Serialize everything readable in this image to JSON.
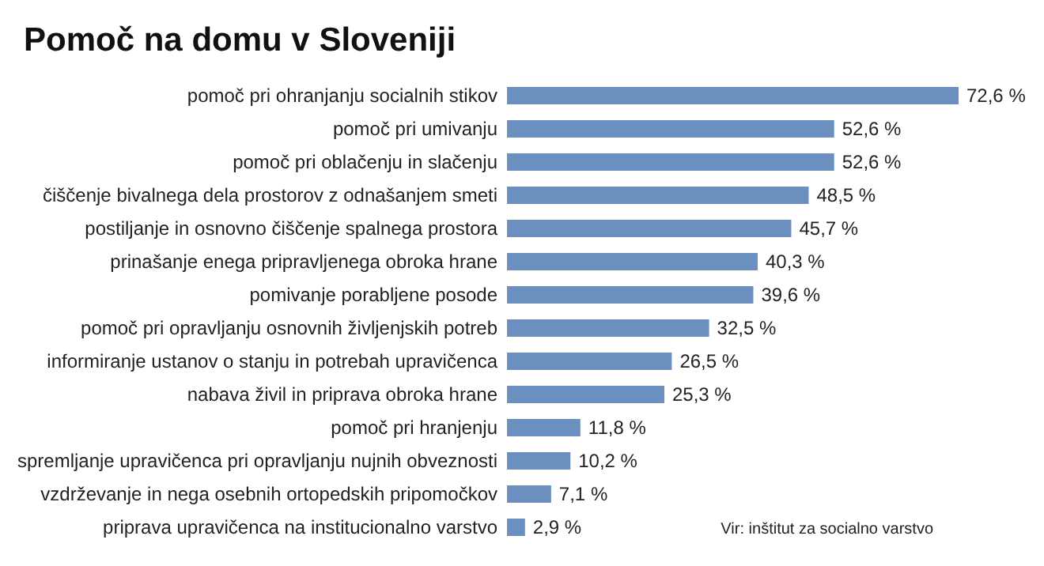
{
  "chart_data": {
    "type": "bar",
    "orientation": "horizontal",
    "title": "Pomoč na domu v Sloveniji",
    "categories": [
      "pomoč pri ohranjanju socialnih stikov",
      "pomoč pri umivanju",
      "pomoč pri oblačenju in slačenju",
      "čiščenje bivalnega dela prostorov z odnašanjem smeti",
      "postiljanje in osnovno čiščenje spalnega prostora",
      "prinašanje enega pripravljenega obroka hrane",
      "pomivanje porabljene posode",
      "pomoč pri opravljanju osnovnih življenjskih potreb",
      "informiranje ustanov o stanju in potrebah upravičenca",
      "nabava živil in priprava obroka hrane",
      "pomoč pri hranjenju",
      "spremljanje upravičenca pri opravljanju nujnih obveznosti",
      "vzdrževanje in nega osebnih ortopedskih pripomočkov",
      "priprava upravičenca na institucionalno varstvo"
    ],
    "values": [
      72.6,
      52.6,
      52.6,
      48.5,
      45.7,
      40.3,
      39.6,
      32.5,
      26.5,
      25.3,
      11.8,
      10.2,
      7.1,
      2.9
    ],
    "value_labels": [
      "72,6 %",
      "52,6 %",
      "52,6 %",
      "48,5 %",
      "45,7 %",
      "40,3 %",
      "39,6 %",
      "32,5 %",
      "26,5 %",
      "25,3 %",
      "11,8 %",
      "10,2 %",
      "7,1 %",
      "2,9 %"
    ],
    "color": "#6b8fbf",
    "annotations": [
      "Vir: inštitut za socialno varstvo"
    ]
  }
}
